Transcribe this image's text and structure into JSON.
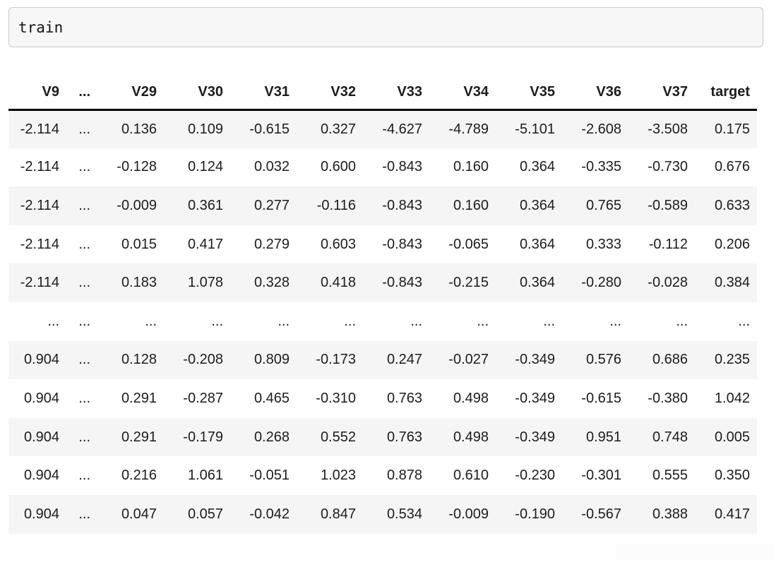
{
  "code_cell": {
    "text": "train"
  },
  "table": {
    "columns": [
      "V9",
      "...",
      "V29",
      "V30",
      "V31",
      "V32",
      "V33",
      "V34",
      "V35",
      "V36",
      "V37",
      "target"
    ],
    "rows": [
      [
        "-2.114",
        "...",
        "0.136",
        "0.109",
        "-0.615",
        "0.327",
        "-4.627",
        "-4.789",
        "-5.101",
        "-2.608",
        "-3.508",
        "0.175"
      ],
      [
        "-2.114",
        "...",
        "-0.128",
        "0.124",
        "0.032",
        "0.600",
        "-0.843",
        "0.160",
        "0.364",
        "-0.335",
        "-0.730",
        "0.676"
      ],
      [
        "-2.114",
        "...",
        "-0.009",
        "0.361",
        "0.277",
        "-0.116",
        "-0.843",
        "0.160",
        "0.364",
        "0.765",
        "-0.589",
        "0.633"
      ],
      [
        "-2.114",
        "...",
        "0.015",
        "0.417",
        "0.279",
        "0.603",
        "-0.843",
        "-0.065",
        "0.364",
        "0.333",
        "-0.112",
        "0.206"
      ],
      [
        "-2.114",
        "...",
        "0.183",
        "1.078",
        "0.328",
        "0.418",
        "-0.843",
        "-0.215",
        "0.364",
        "-0.280",
        "-0.028",
        "0.384"
      ],
      [
        "...",
        "...",
        "...",
        "...",
        "...",
        "...",
        "...",
        "...",
        "...",
        "...",
        "...",
        "..."
      ],
      [
        "0.904",
        "...",
        "0.128",
        "-0.208",
        "0.809",
        "-0.173",
        "0.247",
        "-0.027",
        "-0.349",
        "0.576",
        "0.686",
        "0.235"
      ],
      [
        "0.904",
        "...",
        "0.291",
        "-0.287",
        "0.465",
        "-0.310",
        "0.763",
        "0.498",
        "-0.349",
        "-0.615",
        "-0.380",
        "1.042"
      ],
      [
        "0.904",
        "...",
        "0.291",
        "-0.179",
        "0.268",
        "0.552",
        "0.763",
        "0.498",
        "-0.349",
        "0.951",
        "0.748",
        "0.005"
      ],
      [
        "0.904",
        "...",
        "0.216",
        "1.061",
        "-0.051",
        "1.023",
        "0.878",
        "0.610",
        "-0.230",
        "-0.301",
        "0.555",
        "0.350"
      ],
      [
        "0.904",
        "...",
        "0.047",
        "0.057",
        "-0.042",
        "0.847",
        "0.534",
        "-0.009",
        "-0.190",
        "-0.567",
        "0.388",
        "0.417"
      ]
    ]
  },
  "colors": {
    "row_stripe": "#f5f5f5",
    "header_rule": "#000000",
    "text": "#1c1c1c",
    "code_cell_bg": "#f7f7f7",
    "code_cell_border": "#c9c9c9",
    "popup_bg": "#fcfcfc"
  }
}
